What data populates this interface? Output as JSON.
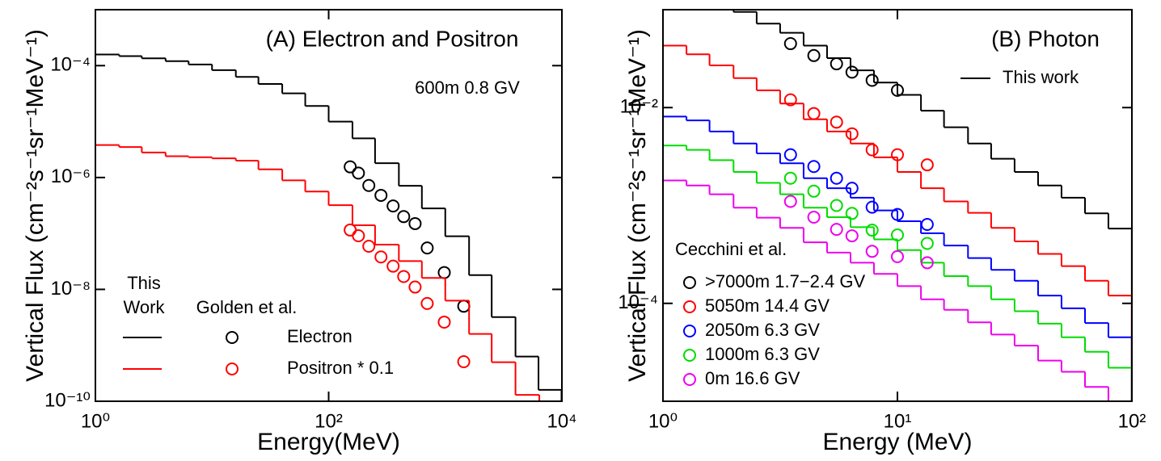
{
  "chart_data": [
    {
      "type": "step",
      "title": "(A) Electron and Positron",
      "annotation": "600m 0.8 GV",
      "xlabel": "Energy(MeV)",
      "ylabel": "Vertical Flux (cm⁻²s⁻¹sr⁻¹MeV⁻¹)",
      "xscale": "log",
      "yscale": "log",
      "xlim": [
        1,
        10000
      ],
      "ylim": [
        1e-10,
        0.001
      ],
      "xticks": [
        {
          "value": 1,
          "label": "10⁰"
        },
        {
          "value": 100,
          "label": "10²"
        },
        {
          "value": 10000,
          "label": "10⁴"
        }
      ],
      "yticks": [
        {
          "value": 1e-10,
          "label": "10⁻¹⁰"
        },
        {
          "value": 1e-08,
          "label": "10⁻⁸"
        },
        {
          "value": 1e-06,
          "label": "10⁻⁶"
        },
        {
          "value": 0.0001,
          "label": "10⁻⁴"
        }
      ],
      "legend": {
        "line_header": [
          "This",
          "Work"
        ],
        "marker_header": "Golden et al."
      },
      "series": [
        {
          "name": "Electron",
          "color": "#000000",
          "x": [
            1,
            1.6,
            2.5,
            4,
            6.3,
            10,
            16,
            25,
            40,
            63,
            100,
            160,
            250,
            400,
            630,
            1000,
            1600,
            2500,
            4000,
            6300
          ],
          "values": [
            0.000158,
            0.000148,
            0.000135,
            0.00012,
            0.000105,
            8.3e-05,
            6.3e-05,
            4.7e-05,
            3.2e-05,
            1.9e-05,
            1e-05,
            5e-06,
            1.8e-06,
            7.1e-07,
            2.8e-07,
            8.9e-08,
            1.8e-08,
            3.2e-09,
            6.3e-10,
            1.6e-10
          ],
          "points_x": [
            153,
            180,
            221,
            281,
            357,
            440,
            551,
            700,
            980,
            1440
          ],
          "points_values": [
            1.55e-06,
            1.2e-06,
            7.2e-07,
            4.8e-07,
            3.1e-07,
            2e-07,
            1.5e-07,
            5.5e-08,
            2e-08,
            5e-09
          ]
        },
        {
          "name": "Positron * 0.1",
          "color": "#ff0000",
          "x": [
            1,
            1.6,
            2.5,
            4,
            6.3,
            10,
            16,
            25,
            40,
            63,
            100,
            160,
            250,
            400,
            630,
            1000,
            1600,
            2500,
            4000
          ],
          "values": [
            3.8e-06,
            3.5e-06,
            2.8e-06,
            2.4e-06,
            2.3e-06,
            2.2e-06,
            2e-06,
            1.4e-06,
            8.9e-07,
            5.6e-07,
            3.2e-07,
            1.4e-07,
            6.3e-08,
            3.2e-08,
            1.6e-08,
            6.3e-09,
            1.6e-09,
            5e-10,
            1.3e-10
          ],
          "points_x": [
            153,
            180,
            221,
            281,
            357,
            440,
            551,
            700,
            980,
            1440
          ],
          "points_values": [
            1.15e-07,
            9.1e-08,
            5.9e-08,
            3.8e-08,
            2.6e-08,
            1.7e-08,
            1.1e-08,
            5.6e-09,
            2.6e-09,
            5.1e-10
          ]
        }
      ]
    },
    {
      "type": "step",
      "title": "(B) Photon",
      "xlabel": "Energy (MeV)",
      "ylabel": "Vertical Flux (cm⁻²s⁻¹sr⁻¹MeV⁻¹)",
      "xscale": "log",
      "yscale": "log",
      "xlim": [
        1,
        100
      ],
      "ylim": [
        1e-05,
        0.1
      ],
      "xticks": [
        {
          "value": 1,
          "label": "10⁰"
        },
        {
          "value": 10,
          "label": "10¹"
        },
        {
          "value": 100,
          "label": "10²"
        }
      ],
      "yticks": [
        {
          "value": 0.0001,
          "label": "10⁻⁴"
        },
        {
          "value": 0.01,
          "label": "10⁻²"
        }
      ],
      "legend": {
        "line_label": "This work",
        "marker_header": "Cecchini et al."
      },
      "series": [
        {
          "name": ">7000m 1.7−2.4 GV",
          "color": "#000000",
          "x": [
            1,
            1.26,
            1.58,
            2,
            2.51,
            3.16,
            3.98,
            5.01,
            6.31,
            7.94,
            10,
            12.6,
            15.8,
            20,
            25.1,
            31.6,
            39.8,
            50.1,
            63.1,
            79.4
          ],
          "values": [
            0.13,
            0.11,
            0.105,
            0.095,
            0.072,
            0.058,
            0.043,
            0.032,
            0.024,
            0.018,
            0.0135,
            0.0093,
            0.0063,
            0.0043,
            0.003,
            0.0022,
            0.0016,
            0.0012,
            0.00083,
            0.00058
          ],
          "points_x": [
            3.5,
            4.4,
            5.5,
            6.4,
            7.8,
            10
          ],
          "points_values": [
            0.045,
            0.034,
            0.028,
            0.023,
            0.019,
            0.015
          ]
        },
        {
          "name": "5050m 14.4 GV",
          "color": "#ff0000",
          "x": [
            1,
            1.26,
            1.58,
            2,
            2.51,
            3.16,
            3.98,
            5.01,
            6.31,
            7.94,
            10,
            12.6,
            15.8,
            20,
            25.1,
            31.6,
            39.8,
            50.1,
            63.1,
            79.4
          ],
          "values": [
            0.043,
            0.035,
            0.027,
            0.02,
            0.015,
            0.011,
            0.0076,
            0.0057,
            0.0043,
            0.0031,
            0.0022,
            0.0015,
            0.0011,
            0.00084,
            0.00059,
            0.00043,
            0.00032,
            0.00024,
            0.00017,
            0.00012
          ],
          "points_x": [
            3.5,
            4.4,
            5.5,
            6.4,
            7.8,
            10,
            13.4
          ],
          "points_values": [
            0.012,
            0.0087,
            0.0071,
            0.0054,
            0.0037,
            0.0033,
            0.0026
          ]
        },
        {
          "name": "2050m 6.3 GV",
          "color": "#0000ff",
          "x": [
            1,
            1.26,
            1.58,
            2,
            2.51,
            3.16,
            3.98,
            5.01,
            6.31,
            7.94,
            10,
            12.6,
            15.8,
            20,
            25.1,
            31.6,
            39.8,
            50.1,
            63.1,
            79.4
          ],
          "values": [
            0.0081,
            0.0074,
            0.0057,
            0.0043,
            0.0034,
            0.0027,
            0.0019,
            0.0015,
            0.0012,
            0.00089,
            0.00069,
            0.00052,
            0.00039,
            0.00029,
            0.00022,
            0.00017,
            0.00012,
            8.9e-05,
            6.3e-05,
            4.5e-05
          ],
          "points_x": [
            3.5,
            4.4,
            5.5,
            6.4,
            7.8,
            10,
            13.4
          ],
          "points_values": [
            0.0033,
            0.0025,
            0.0019,
            0.0015,
            0.00096,
            0.00081,
            0.00064
          ]
        },
        {
          "name": "1000m 6.3 GV",
          "color": "#00dd00",
          "x": [
            1,
            1.26,
            1.58,
            2,
            2.51,
            3.16,
            3.98,
            5.01,
            6.31,
            7.94,
            10,
            12.6,
            15.8,
            20,
            25.1,
            31.6,
            39.8,
            50.1,
            63.1,
            79.4
          ],
          "values": [
            0.0041,
            0.0037,
            0.0029,
            0.0022,
            0.0017,
            0.0013,
            0.00095,
            0.00076,
            0.0006,
            0.00045,
            0.00035,
            0.00026,
            0.00019,
            0.00015,
            0.00011,
            8.3e-05,
            6.2e-05,
            4.5e-05,
            3.2e-05,
            2.2e-05
          ],
          "points_x": [
            3.5,
            4.4,
            5.5,
            6.4,
            7.8,
            10,
            13.4
          ],
          "points_values": [
            0.0019,
            0.0014,
            0.001,
            0.00083,
            0.00056,
            0.0005,
            0.00041
          ]
        },
        {
          "name": "0m 16.6 GV",
          "color": "#ee00ee",
          "x": [
            1,
            1.26,
            1.58,
            2,
            2.51,
            3.16,
            3.98,
            5.01,
            6.31,
            7.94,
            10,
            12.6,
            15.8,
            20,
            25.1,
            31.6,
            39.8,
            50.1,
            63.1,
            79.4
          ],
          "values": [
            0.0018,
            0.0016,
            0.0013,
            0.00095,
            0.00075,
            0.00059,
            0.00042,
            0.00033,
            0.00026,
            0.0002,
            0.00015,
            0.00011,
            8.6e-05,
            6.4e-05,
            4.8e-05,
            3.7e-05,
            2.6e-05,
            2e-05,
            1.4e-05,
            1e-05
          ],
          "points_x": [
            3.5,
            4.4,
            5.5,
            6.4,
            7.8,
            10,
            13.4
          ],
          "points_values": [
            0.0011,
            0.00076,
            0.00057,
            0.00049,
            0.00034,
            0.0003,
            0.00026
          ]
        }
      ]
    }
  ]
}
